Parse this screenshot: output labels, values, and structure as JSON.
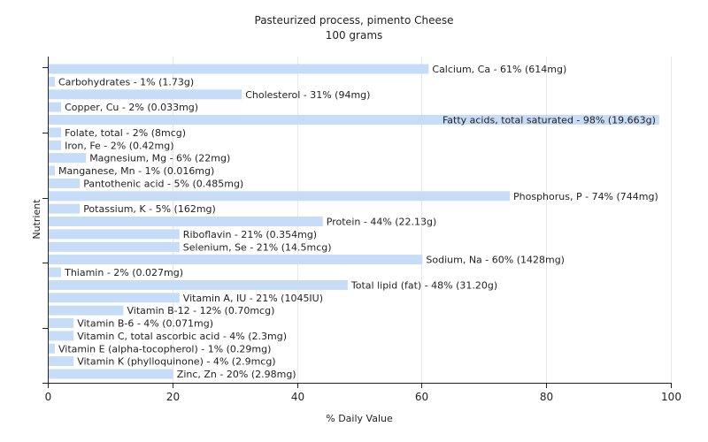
{
  "chart_data": {
    "type": "bar",
    "orientation": "horizontal",
    "title": "Pasteurized process, pimento Cheese",
    "subtitle": "100 grams",
    "xlabel": "% Daily Value",
    "ylabel": "Nutrient",
    "xlim": [
      0,
      100
    ],
    "xticks": [
      "0",
      "20",
      "40",
      "60",
      "80",
      "100"
    ],
    "grid": true,
    "bar_color": "#c6dcf7",
    "categories": [
      "Calcium, Ca",
      "Carbohydrates",
      "Cholesterol",
      "Copper, Cu",
      "Fatty acids, total saturated",
      "Folate, total",
      "Iron, Fe",
      "Magnesium, Mg",
      "Manganese, Mn",
      "Pantothenic acid",
      "Phosphorus, P",
      "Potassium, K",
      "Protein",
      "Riboflavin",
      "Selenium, Se",
      "Sodium, Na",
      "Thiamin",
      "Total lipid (fat)",
      "Vitamin A, IU",
      "Vitamin B-12",
      "Vitamin B-6",
      "Vitamin C, total ascorbic acid",
      "Vitamin E (alpha-tocopherol)",
      "Vitamin K (phylloquinone)",
      "Zinc, Zn"
    ],
    "values": [
      61,
      1,
      31,
      2,
      98,
      2,
      2,
      6,
      1,
      5,
      74,
      5,
      44,
      21,
      21,
      60,
      2,
      48,
      21,
      12,
      4,
      4,
      1,
      4,
      20
    ],
    "labels": [
      "Calcium, Ca - 61% (614mg)",
      "Carbohydrates - 1% (1.73g)",
      "Cholesterol - 31% (94mg)",
      "Copper, Cu - 2% (0.033mg)",
      "Fatty acids, total saturated - 98% (19.663g)",
      "Folate, total - 2% (8mcg)",
      "Iron, Fe - 2% (0.42mg)",
      "Magnesium, Mg - 6% (22mg)",
      "Manganese, Mn - 1% (0.016mg)",
      "Pantothenic acid - 5% (0.485mg)",
      "Phosphorus, P - 74% (744mg)",
      "Potassium, K - 5% (162mg)",
      "Protein - 44% (22.13g)",
      "Riboflavin - 21% (0.354mg)",
      "Selenium, Se - 21% (14.5mcg)",
      "Sodium, Na - 60% (1428mg)",
      "Thiamin - 2% (0.027mg)",
      "Total lipid (fat) - 48% (31.20g)",
      "Vitamin A, IU - 21% (1045IU)",
      "Vitamin B-12 - 12% (0.70mcg)",
      "Vitamin B-6 - 4% (0.071mg)",
      "Vitamin C, total ascorbic acid - 4% (2.3mg)",
      "Vitamin E (alpha-tocopherol) - 1% (0.29mg)",
      "Vitamin K (phylloquinone) - 4% (2.9mcg)",
      "Zinc, Zn - 20% (2.98mg)"
    ]
  }
}
